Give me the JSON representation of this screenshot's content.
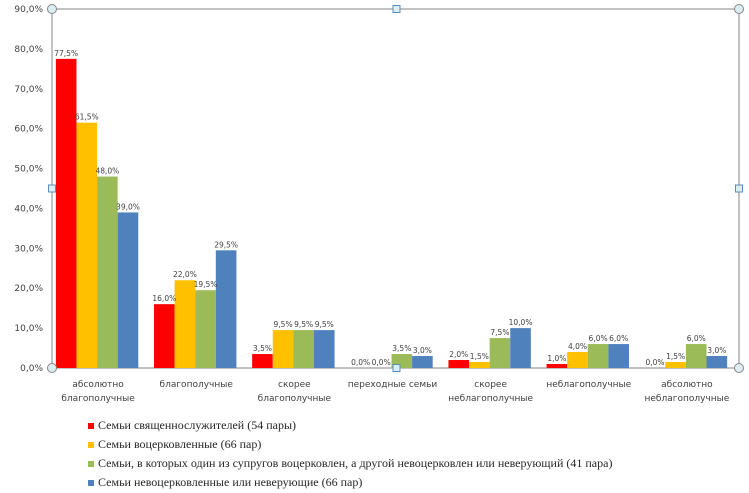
{
  "chart_data": {
    "type": "bar",
    "title": "",
    "xlabel": "",
    "ylabel": "",
    "ylim": [
      0,
      90
    ],
    "ytick_step": 10,
    "ytick_format": "{v},0%",
    "yticks": [
      "0,0%",
      "10,0%",
      "20,0%",
      "30,0%",
      "40,0%",
      "50,0%",
      "60,0%",
      "70,0%",
      "80,0%",
      "90,0%"
    ],
    "grid": false,
    "legend_position": "bottom",
    "categories": [
      [
        "абсолютно",
        "благополучные"
      ],
      [
        "благополучные"
      ],
      [
        "скорее",
        "благополучные"
      ],
      [
        "переходные семьи"
      ],
      [
        "скорее",
        "неблагополучные"
      ],
      [
        "неблагополучные"
      ],
      [
        "абсолютно",
        "неблагополучные"
      ]
    ],
    "series": [
      {
        "name": "Семьи священнослужителей  (54 пары)",
        "color": "#ff0000",
        "values": [
          77.5,
          16.0,
          3.5,
          0.0,
          2.0,
          1.0,
          0.0
        ],
        "labels": [
          "77,5%",
          "16,0%",
          "3,5%",
          "0,0%",
          "2,0%",
          "1,0%",
          "0,0%"
        ]
      },
      {
        "name": "Семьи воцерковленные  (66 пар)",
        "color": "#ffc000",
        "values": [
          61.5,
          22.0,
          9.5,
          0.0,
          1.5,
          4.0,
          1.5
        ],
        "labels": [
          "61,5%",
          "22,0%",
          "9,5%",
          "0,0%",
          "1,5%",
          "4,0%",
          "1,5%"
        ]
      },
      {
        "name": "Семьи, в которых один из супругов  воцерковлен,  а другой невоцерковлен  или неверующий  (41 пара)",
        "color": "#9bbb59",
        "values": [
          48.0,
          19.5,
          9.5,
          3.5,
          7.5,
          6.0,
          6.0
        ],
        "labels": [
          "48,0%",
          "19,5%",
          "9,5%",
          "3,5%",
          "7,5%",
          "6,0%",
          "6,0%"
        ]
      },
      {
        "name": "Семьи невоцерковленные  или  неверующие  (66 пар)",
        "color": "#4f81bd",
        "values": [
          39.0,
          29.5,
          9.5,
          3.0,
          10.0,
          6.0,
          3.0
        ],
        "labels": [
          "39,0%",
          "29,5%",
          "9,5%",
          "3,0%",
          "10,0%",
          "6,0%",
          "3,0%"
        ]
      }
    ]
  },
  "colors": {
    "axis": "#868686",
    "handle_fill": "#dbeef4",
    "handle_stroke": "#5b8db8"
  }
}
